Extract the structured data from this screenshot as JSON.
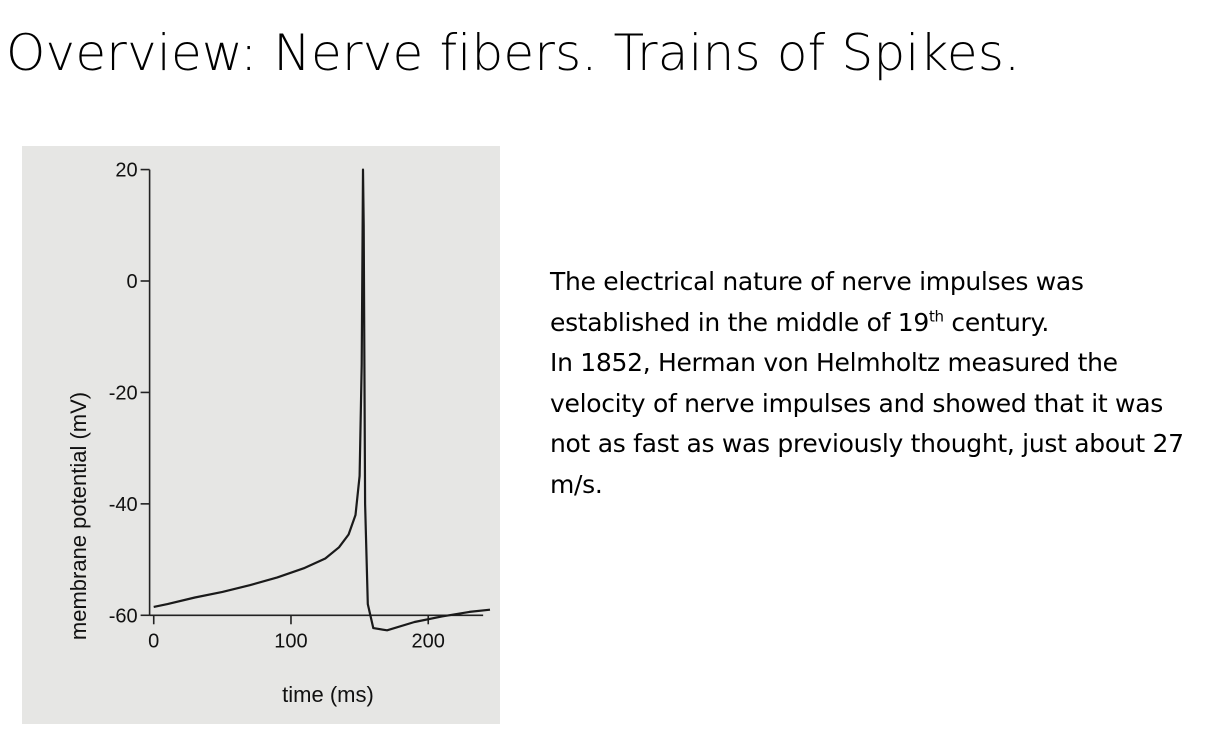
{
  "slide": {
    "title": "Overview: Nerve fibers. Trains of Spikes."
  },
  "text": {
    "line1": "The electrical nature of nerve impulses was",
    "line2_pre": "established in the middle of 19",
    "line2_sup": "th",
    "line2_post": " century.",
    "line3": "In 1852, Herman von Helmholtz measured the velocity of nerve impulses and showed that it was not as fast as was previously thought, just about 27 m/s."
  },
  "chart_data": {
    "type": "line",
    "title": "",
    "xlabel": "time  (ms)",
    "ylabel": "membrane potential (mV)",
    "xlim": [
      -10,
      245
    ],
    "ylim": [
      -63,
      21
    ],
    "x_ticks": [
      0,
      100,
      200
    ],
    "y_ticks": [
      20,
      0,
      -20,
      -40,
      -60
    ],
    "x_tick_labels": [
      "0",
      "100",
      "200"
    ],
    "y_tick_labels": [
      "20",
      "0",
      "-20",
      "-40",
      "-60"
    ],
    "grid": false,
    "legend": "none",
    "series": [
      {
        "x": [
          0,
          10,
          30,
          50,
          70,
          90,
          110,
          125,
          135,
          142,
          147,
          150,
          151.5,
          152.5,
          153,
          154,
          156,
          160,
          170,
          190,
          210,
          230,
          245
        ],
        "y": [
          -58.5,
          -58,
          -56.8,
          -55.8,
          -54.6,
          -53.2,
          -51.5,
          -49.8,
          -47.8,
          -45.5,
          -42,
          -35,
          -15,
          20,
          10,
          -40,
          -58,
          -62.3,
          -62.7,
          -61.2,
          -60.2,
          -59.4,
          -59
        ]
      }
    ]
  }
}
